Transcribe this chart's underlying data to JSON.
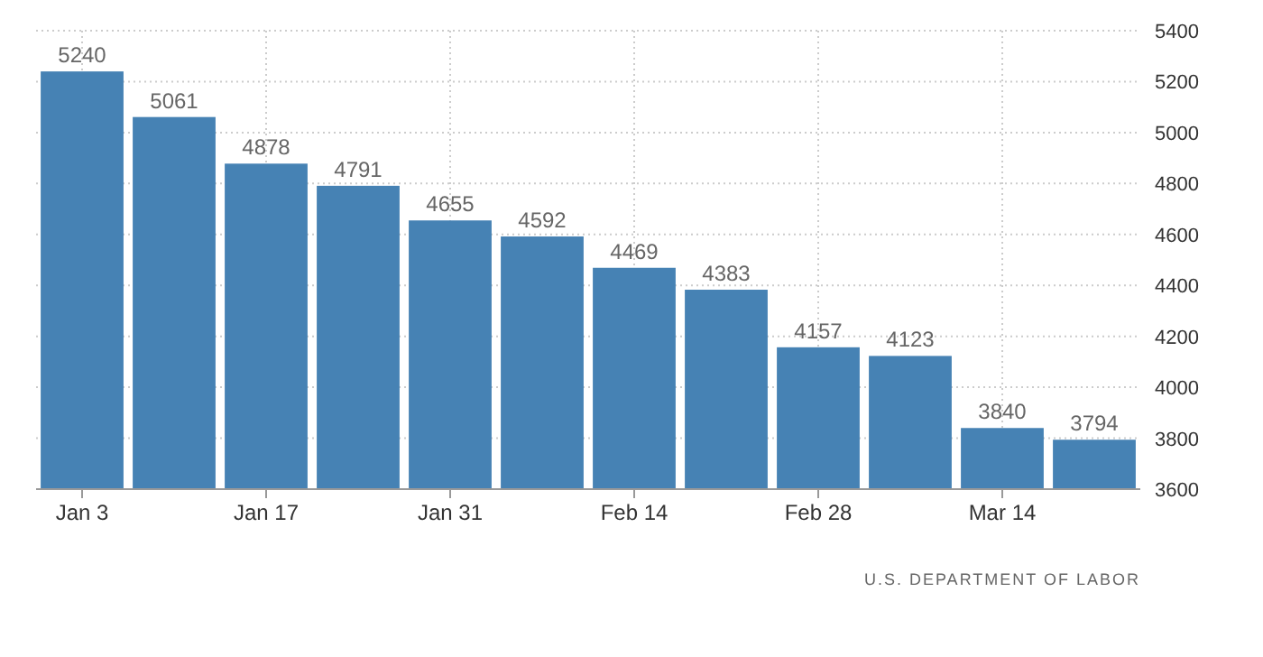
{
  "chart_data": {
    "type": "bar",
    "categories": [
      "Jan 3",
      null,
      "Jan 17",
      null,
      "Jan 31",
      null,
      "Feb 14",
      null,
      "Feb 28",
      null,
      "Mar 14",
      null
    ],
    "values": [
      5240,
      5061,
      4878,
      4791,
      4655,
      4592,
      4469,
      4383,
      4157,
      4123,
      3840,
      3794
    ],
    "color": "#4682b4",
    "ylim": [
      3600,
      5400
    ],
    "yticks": [
      3600,
      3800,
      4000,
      4200,
      4400,
      4600,
      4800,
      5000,
      5200,
      5400
    ],
    "grid": true,
    "data_labels": true,
    "annotations": [
      "U.S. DEPARTMENT OF LABOR"
    ]
  }
}
